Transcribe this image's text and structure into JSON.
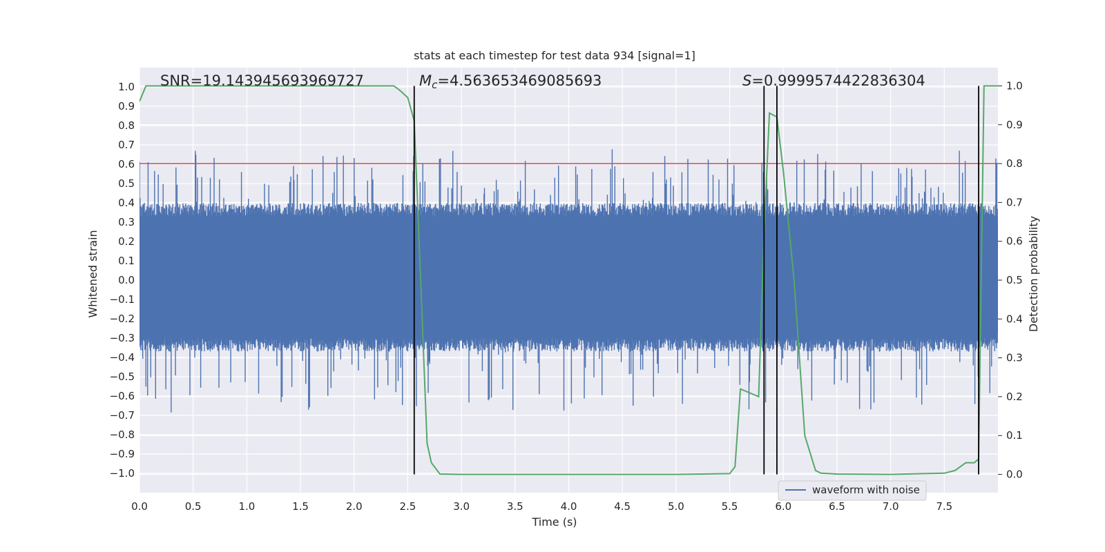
{
  "chart_data": {
    "type": "line",
    "title": "stats at each timestep for test data 934 [signal=1]",
    "xlabel": "Time (s)",
    "ylabel": "Whitened strain",
    "y2label": "Detection probability",
    "xlim": [
      0.0,
      8.0
    ],
    "ylim": [
      -1.1,
      1.1
    ],
    "y2lim": [
      -0.047,
      1.047
    ],
    "xticks": [
      0.0,
      0.5,
      1.0,
      1.5,
      2.0,
      2.5,
      3.0,
      3.5,
      4.0,
      4.5,
      5.0,
      5.5,
      6.0,
      6.5,
      7.0,
      7.5
    ],
    "xtick_labels": [
      "0.0",
      "0.5",
      "1.0",
      "1.5",
      "2.0",
      "2.5",
      "3.0",
      "3.5",
      "4.0",
      "4.5",
      "5.0",
      "5.5",
      "6.0",
      "6.5",
      "7.0",
      "7.5"
    ],
    "yticks": [
      1.0,
      0.9,
      0.8,
      0.7,
      0.6,
      0.5,
      0.4,
      0.3,
      0.2,
      0.1,
      0.0,
      -0.1,
      -0.2,
      -0.3,
      -0.4,
      -0.5,
      -0.6,
      -0.7,
      -0.8,
      -0.9,
      -1.0
    ],
    "ytick_labels": [
      "1.0",
      "0.9",
      "0.8",
      "0.7",
      "0.6",
      "0.5",
      "0.4",
      "0.3",
      "0.2",
      "0.1",
      "0.0",
      "−0.1",
      "−0.2",
      "−0.3",
      "−0.4",
      "−0.5",
      "−0.6",
      "−0.7",
      "−0.8",
      "−0.9",
      "−1.0"
    ],
    "y2ticks": [
      1.0,
      0.9,
      0.8,
      0.7,
      0.6,
      0.5,
      0.4,
      0.3,
      0.2,
      0.1,
      0.0
    ],
    "y2tick_labels": [
      "1.0",
      "0.9",
      "0.8",
      "0.7",
      "0.6",
      "0.5",
      "0.4",
      "0.3",
      "0.2",
      "0.1",
      "0.0"
    ],
    "grid": true,
    "legend": {
      "placement": "lower-right",
      "entries": [
        "waveform with noise"
      ]
    },
    "annotations": {
      "snr": "SNR=19.143945693969727",
      "mc_symbol": "M",
      "mc_sub": "c",
      "mc_value": "=4.563653469085693",
      "s_symbol": "S",
      "s_value": "=0.9999574422836304"
    },
    "threshold": {
      "value": 0.8,
      "axis": "right",
      "color": "#c44e52"
    },
    "vlines": [
      2.56,
      5.82,
      5.94,
      7.82
    ],
    "waveform": {
      "name": "waveform with noise",
      "color": "#4c72b0",
      "samples": 1600,
      "noise_band": [
        -0.3,
        0.33
      ],
      "peak_range": [
        -0.9,
        0.92
      ]
    },
    "probability": {
      "color": "#55a868",
      "x": [
        0.0,
        0.06,
        0.1,
        2.2,
        2.37,
        2.42,
        2.5,
        2.56,
        2.62,
        2.68,
        2.72,
        2.8,
        3.0,
        3.5,
        4.0,
        4.5,
        5.0,
        5.5,
        5.55,
        5.6,
        5.77,
        5.82,
        5.87,
        5.94,
        6.0,
        6.1,
        6.2,
        6.3,
        6.35,
        6.5,
        7.0,
        7.5,
        7.6,
        7.7,
        7.78,
        7.82,
        7.87,
        7.92,
        8.0
      ],
      "y": [
        0.96,
        1.0,
        1.0,
        1.0,
        1.0,
        0.99,
        0.97,
        0.91,
        0.5,
        0.08,
        0.03,
        0.001,
        0.0,
        0.0,
        0.0,
        0.0,
        0.0,
        0.002,
        0.02,
        0.22,
        0.2,
        0.62,
        0.93,
        0.92,
        0.78,
        0.5,
        0.1,
        0.01,
        0.003,
        0.001,
        0.0,
        0.003,
        0.01,
        0.03,
        0.03,
        0.04,
        1.0,
        1.0,
        1.0
      ]
    }
  }
}
